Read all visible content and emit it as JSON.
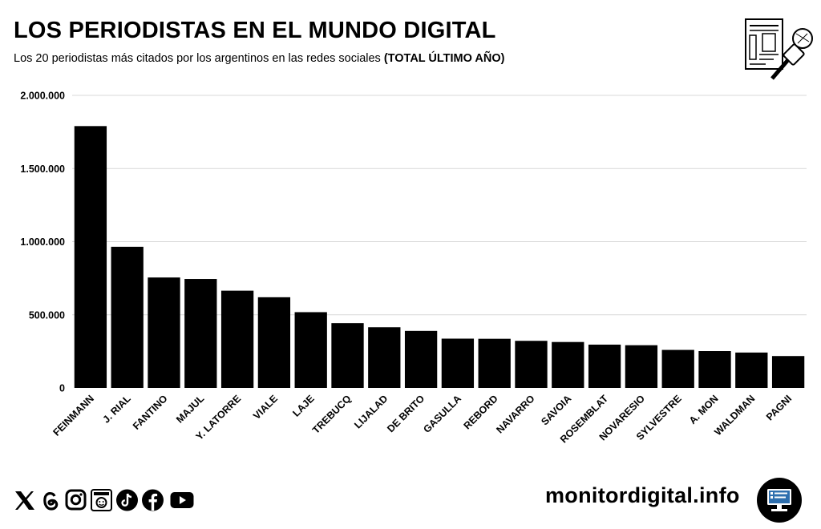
{
  "header": {
    "title": "LOS PERIODISTAS EN EL MUNDO DIGITAL",
    "subtitle": "Los 20 periodistas más citados por los argentinos en las redes sociales ",
    "subtitle_bold": "(TOTAL ÚLTIMO AÑO)"
  },
  "footer": {
    "brand": "monitordigital.info",
    "social_icons": [
      "x-icon",
      "threads-icon",
      "instagram-icon",
      "newsletter-icon",
      "tiktok-icon",
      "facebook-icon",
      "youtube-icon"
    ]
  },
  "colors": {
    "bar": "#000000",
    "grid": "#d9d9d9",
    "background": "#ffffff"
  },
  "chart_data": {
    "type": "bar",
    "title": "LOS PERIODISTAS EN EL MUNDO DIGITAL",
    "xlabel": "",
    "ylabel": "",
    "ylim": [
      0,
      2000000
    ],
    "yticks": [
      0,
      500000,
      1000000,
      1500000,
      2000000
    ],
    "ytick_labels": [
      "0",
      "500.000",
      "1.000.000",
      "1.500.000",
      "2.000.000"
    ],
    "grid": true,
    "categories": [
      "FEINMANN",
      "J. RIAL",
      "FANTINO",
      "MAJUL",
      "Y. LATORRE",
      "VIALE",
      "LAJE",
      "TREBUCQ",
      "LIJALAD",
      "DE BRITO",
      "GASULLA",
      "REBORD",
      "NAVARRO",
      "SAVOIA",
      "ROSEMBLAT",
      "NOVARESIO",
      "SYLVESTRE",
      "A. MON",
      "WALDMAN",
      "PAGNI"
    ],
    "values": [
      1790000,
      965000,
      755000,
      745000,
      665000,
      620000,
      518000,
      443000,
      415000,
      390000,
      337000,
      336000,
      322000,
      314000,
      296000,
      292000,
      260000,
      252000,
      242000,
      218000
    ]
  }
}
